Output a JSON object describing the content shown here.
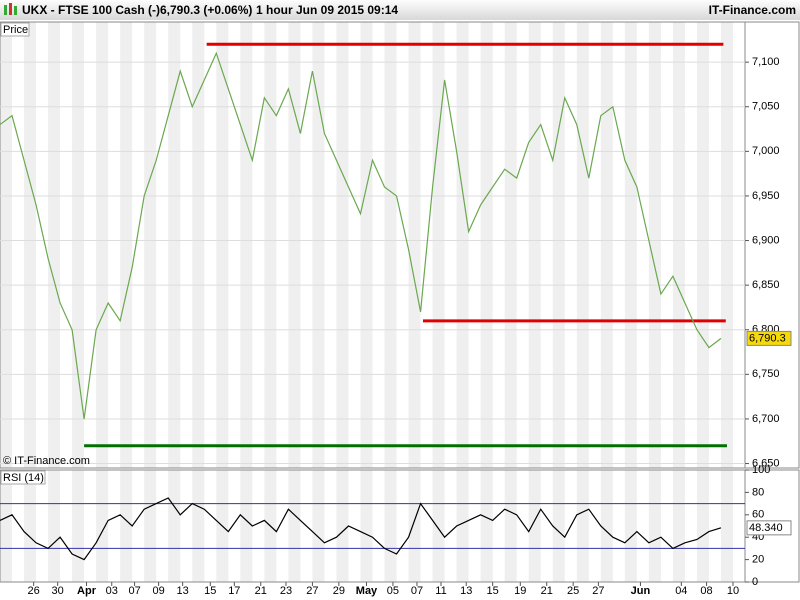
{
  "header": {
    "title": "UKX - FTSE 100 Cash (-)",
    "quote": "6,790.3 (+0.06%)",
    "interval": "1 hour",
    "timestamp": "Jun 09 2015 09:14",
    "brand": "IT-Finance.com"
  },
  "chart_data": [
    {
      "type": "line",
      "title": "Price",
      "annotation": "© IT-Finance.com",
      "x": [
        0,
        1,
        2,
        3,
        4,
        5,
        6,
        7,
        8,
        9,
        10,
        11,
        12,
        13,
        14,
        15,
        16,
        17,
        18,
        19,
        20,
        21,
        22,
        23,
        24,
        25,
        26,
        27,
        28,
        29,
        30,
        31,
        32,
        33,
        34,
        35,
        36,
        37,
        38,
        39,
        40,
        41,
        42,
        43,
        44,
        45,
        46,
        47,
        48,
        49,
        50,
        51,
        52,
        53,
        54,
        55,
        56,
        57,
        58,
        59,
        60
      ],
      "series": [
        {
          "color": "#6aa84f",
          "values": [
            7030,
            7040,
            6990,
            6940,
            6880,
            6830,
            6800,
            6700,
            6800,
            6830,
            6810,
            6870,
            6950,
            6990,
            7040,
            7090,
            7050,
            7080,
            7110,
            7070,
            7030,
            6990,
            7060,
            7040,
            7070,
            7020,
            7090,
            7020,
            6990,
            6960,
            6930,
            6990,
            6960,
            6950,
            6890,
            6820,
            6960,
            7080,
            7000,
            6910,
            6940,
            6960,
            6980,
            6970,
            7010,
            7030,
            6990,
            7060,
            7030,
            6970,
            7040,
            7050,
            6990,
            6960,
            6900,
            6840,
            6860,
            6830,
            6800,
            6780,
            6790.3
          ]
        }
      ],
      "levels": [
        {
          "value": 7120,
          "x": [
            17.2,
            60.2
          ],
          "color": "#e00000"
        },
        {
          "value": 6810,
          "x": [
            35.2,
            60.4
          ],
          "color": "#e00000"
        },
        {
          "value": 6670,
          "x": [
            7.0,
            60.5
          ],
          "color": "#007000"
        }
      ],
      "last": {
        "value": 6790.3,
        "label": "6,790.3"
      },
      "xlim": [
        0,
        62
      ],
      "ylim": [
        6645,
        7145
      ],
      "yticks": [
        {
          "value": 6650,
          "label": "6,650"
        },
        {
          "value": 6700,
          "label": "6,700"
        },
        {
          "value": 6750,
          "label": "6,750"
        },
        {
          "value": 6800,
          "label": "6,800"
        },
        {
          "value": 6850,
          "label": "6,850"
        },
        {
          "value": 6900,
          "label": "6,900"
        },
        {
          "value": 6950,
          "label": "6,950"
        },
        {
          "value": 7000,
          "label": "7,000"
        },
        {
          "value": 7050,
          "label": "7,050"
        },
        {
          "value": 7100,
          "label": "7,100"
        }
      ],
      "grid": true
    },
    {
      "type": "line",
      "title": "RSI (14)",
      "x": [
        0,
        1,
        2,
        3,
        4,
        5,
        6,
        7,
        8,
        9,
        10,
        11,
        12,
        13,
        14,
        15,
        16,
        17,
        18,
        19,
        20,
        21,
        22,
        23,
        24,
        25,
        26,
        27,
        28,
        29,
        30,
        31,
        32,
        33,
        34,
        35,
        36,
        37,
        38,
        39,
        40,
        41,
        42,
        43,
        44,
        45,
        46,
        47,
        48,
        49,
        50,
        51,
        52,
        53,
        54,
        55,
        56,
        57,
        58,
        59,
        60
      ],
      "series": [
        {
          "color": "#000000",
          "values": [
            55,
            60,
            45,
            35,
            30,
            40,
            25,
            20,
            35,
            55,
            60,
            50,
            65,
            70,
            75,
            60,
            70,
            65,
            55,
            45,
            60,
            50,
            55,
            45,
            65,
            55,
            45,
            35,
            40,
            50,
            45,
            40,
            30,
            25,
            40,
            70,
            55,
            40,
            50,
            55,
            60,
            55,
            65,
            60,
            45,
            65,
            50,
            40,
            60,
            65,
            50,
            40,
            35,
            45,
            35,
            40,
            30,
            35,
            38,
            45,
            48.34
          ]
        }
      ],
      "levels": [
        {
          "value": 30,
          "color": "#3333aa"
        },
        {
          "value": 70,
          "color": "#3333aa"
        }
      ],
      "last": {
        "value": 48.34,
        "label": "48.340"
      },
      "xlim": [
        0,
        62
      ],
      "ylim": [
        0,
        100
      ],
      "yticks": [
        0,
        20,
        40,
        60,
        80,
        100
      ],
      "xticks": [
        {
          "value": 2.8,
          "label": "26"
        },
        {
          "value": 4.8,
          "label": "30"
        },
        {
          "value": 7.2,
          "label": "Apr"
        },
        {
          "value": 9.3,
          "label": "03"
        },
        {
          "value": 11.2,
          "label": "07"
        },
        {
          "value": 13.2,
          "label": "09"
        },
        {
          "value": 15.2,
          "label": "13"
        },
        {
          "value": 17.5,
          "label": "15"
        },
        {
          "value": 19.5,
          "label": "17"
        },
        {
          "value": 21.7,
          "label": "21"
        },
        {
          "value": 23.8,
          "label": "23"
        },
        {
          "value": 26,
          "label": "27"
        },
        {
          "value": 28.2,
          "label": "29"
        },
        {
          "value": 30.5,
          "label": "May"
        },
        {
          "value": 32.7,
          "label": "05"
        },
        {
          "value": 34.7,
          "label": "07"
        },
        {
          "value": 36.7,
          "label": "11"
        },
        {
          "value": 38.8,
          "label": "13"
        },
        {
          "value": 41,
          "label": "15"
        },
        {
          "value": 43.3,
          "label": "19"
        },
        {
          "value": 45.5,
          "label": "21"
        },
        {
          "value": 47.7,
          "label": "25"
        },
        {
          "value": 49.8,
          "label": "27"
        },
        {
          "value": 53.3,
          "label": "Jun"
        },
        {
          "value": 56.7,
          "label": "04"
        },
        {
          "value": 58.8,
          "label": "08"
        },
        {
          "value": 61,
          "label": "10"
        }
      ]
    }
  ]
}
